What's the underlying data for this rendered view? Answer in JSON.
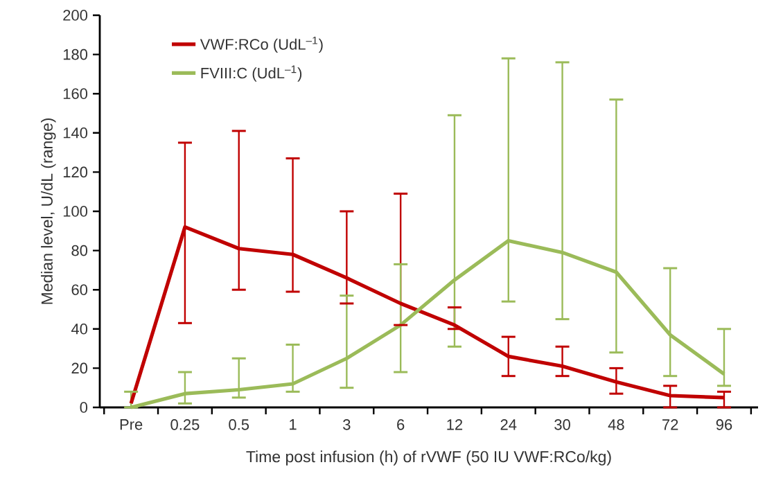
{
  "chart_data": {
    "type": "line",
    "xlabel": "Time post infusion (h) of rVWF (50 IU VWF:RCo/kg)",
    "ylabel": "Median level, U/dL (range)",
    "categories": [
      "Pre",
      "0.25",
      "0.5",
      "1",
      "3",
      "6",
      "12",
      "24",
      "30",
      "48",
      "72",
      "96"
    ],
    "series": [
      {
        "name": "VWF:RCo (UdL$^{–1}$)",
        "color": "#c00000",
        "values": [
          2,
          92,
          81,
          78,
          66,
          53,
          42,
          26,
          21,
          13,
          6,
          5
        ],
        "errors": [
          null,
          [
            43,
            135
          ],
          [
            60,
            141
          ],
          [
            59,
            127
          ],
          [
            53,
            100
          ],
          [
            42,
            109
          ],
          [
            40,
            51
          ],
          [
            16,
            36
          ],
          [
            16,
            31
          ],
          [
            7,
            20
          ],
          [
            0,
            11
          ],
          [
            0,
            8
          ]
        ]
      },
      {
        "name": "FVIII:C (UdL$^{–1}$)",
        "color": "#9bbb59",
        "values": [
          0,
          7,
          9,
          12,
          25,
          42,
          65,
          85,
          79,
          69,
          37,
          17
        ],
        "errors": [
          [
            0,
            8
          ],
          [
            2,
            18
          ],
          [
            5,
            25
          ],
          [
            8,
            32
          ],
          [
            10,
            57
          ],
          [
            18,
            73
          ],
          [
            31,
            149
          ],
          [
            54,
            178
          ],
          [
            45,
            176
          ],
          [
            28,
            157
          ],
          [
            16,
            71
          ],
          [
            11,
            40
          ]
        ]
      }
    ],
    "ylim": [
      0,
      200
    ],
    "yticks": [
      0,
      20,
      40,
      60,
      80,
      100,
      120,
      140,
      160,
      180,
      200
    ],
    "grid": false,
    "legend": "top left",
    "marker": "none",
    "line_style": "solid"
  }
}
